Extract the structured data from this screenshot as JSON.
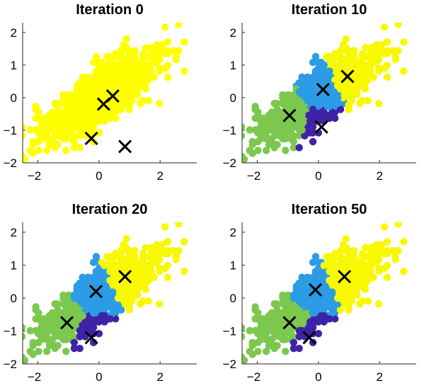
{
  "chart_data": [
    {
      "type": "scatter",
      "title": "Iteration 0",
      "xlim": [
        -2.5,
        3.2
      ],
      "ylim": [
        -2,
        2.3
      ],
      "xticks": [
        -2,
        0,
        2
      ],
      "yticks": [
        -2,
        -1,
        0,
        1,
        2
      ],
      "grid": false,
      "points_color": "#ffff00",
      "centroids": [
        [
          0.45,
          0.05
        ],
        [
          0.15,
          -0.2
        ],
        [
          -0.25,
          -1.25
        ],
        [
          0.85,
          -1.5
        ]
      ]
    },
    {
      "type": "scatter",
      "title": "Iteration 10",
      "xlim": [
        -2.5,
        3.2
      ],
      "ylim": [
        -2,
        2.3
      ],
      "xticks": [
        -2,
        0,
        2
      ],
      "yticks": [
        -2,
        -1,
        0,
        1,
        2
      ],
      "grid": false,
      "cluster_colors": [
        "#f8f800",
        "#2b9ce5",
        "#7cc84f",
        "#3f23a7"
      ],
      "centroids": [
        [
          0.95,
          0.65
        ],
        [
          0.15,
          0.25
        ],
        [
          -0.95,
          -0.55
        ],
        [
          0.1,
          -0.9
        ]
      ]
    },
    {
      "type": "scatter",
      "title": "Iteration 20",
      "xlim": [
        -2.5,
        3.2
      ],
      "ylim": [
        -2,
        2.3
      ],
      "xticks": [
        -2,
        0,
        2
      ],
      "yticks": [
        -2,
        -1,
        0,
        1,
        2
      ],
      "grid": false,
      "cluster_colors": [
        "#f8f800",
        "#2b9ce5",
        "#7cc84f",
        "#3f23a7"
      ],
      "centroids": [
        [
          0.85,
          0.65
        ],
        [
          -0.1,
          0.2
        ],
        [
          -1.05,
          -0.75
        ],
        [
          -0.25,
          -1.2
        ]
      ]
    },
    {
      "type": "scatter",
      "title": "Iteration 50",
      "xlim": [
        -2.5,
        3.2
      ],
      "ylim": [
        -2,
        2.3
      ],
      "xticks": [
        -2,
        0,
        2
      ],
      "yticks": [
        -2,
        -1,
        0,
        1,
        2
      ],
      "grid": false,
      "cluster_colors": [
        "#f8f800",
        "#2b9ce5",
        "#7cc84f",
        "#3f23a7"
      ],
      "centroids": [
        [
          0.85,
          0.65
        ],
        [
          -0.1,
          0.25
        ],
        [
          -0.95,
          -0.75
        ],
        [
          -0.3,
          -1.2
        ]
      ]
    }
  ]
}
